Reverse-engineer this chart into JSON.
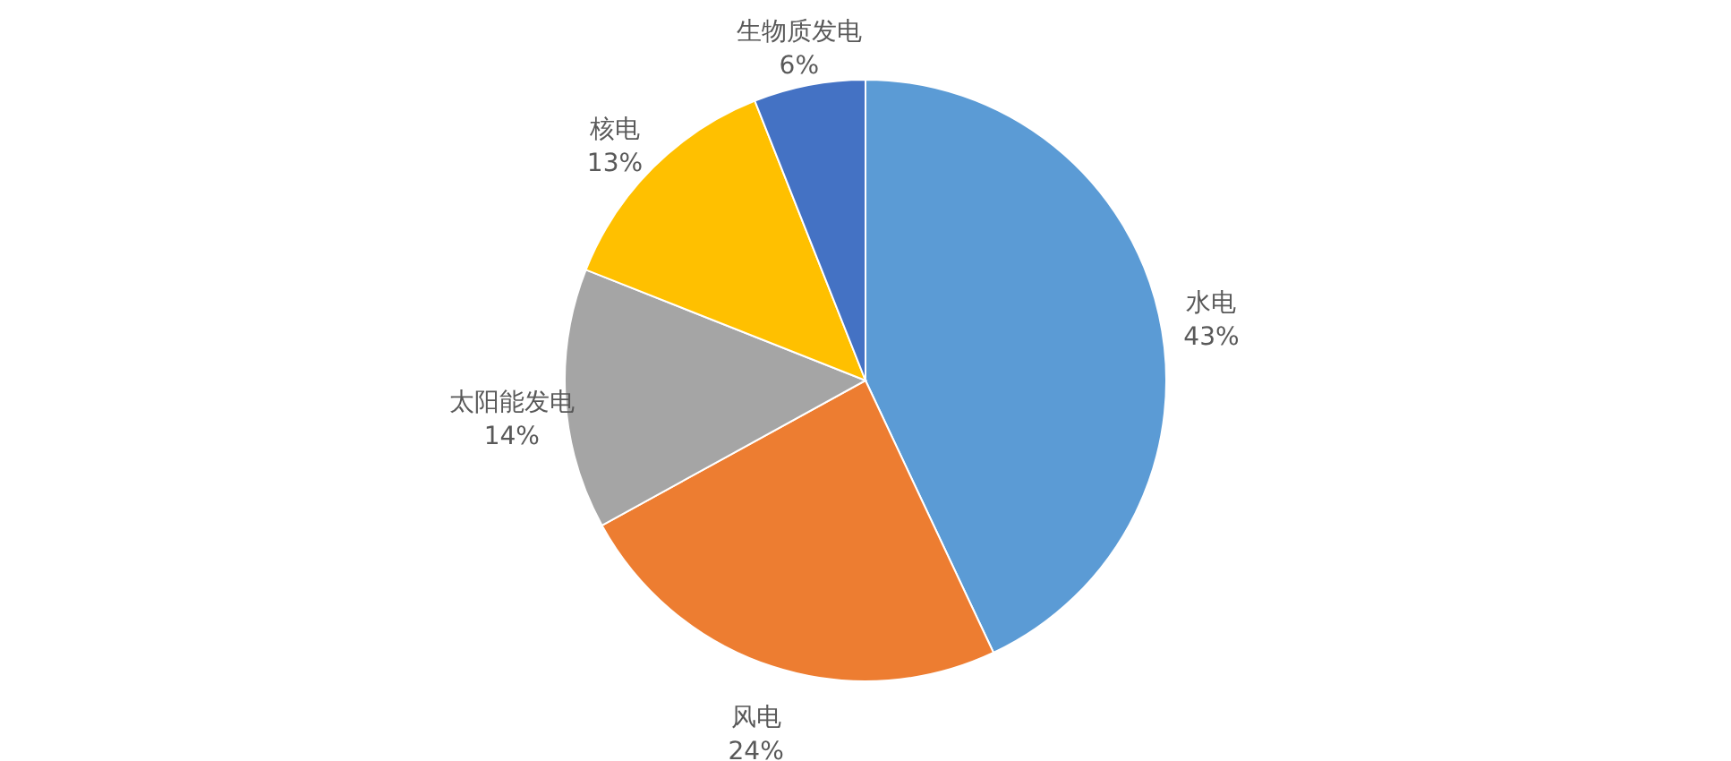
{
  "chart_data": {
    "type": "pie",
    "categories": [
      "水电",
      "风电",
      "太阳能发电",
      "核电",
      "生物质发电"
    ],
    "values": [
      43,
      24,
      14,
      13,
      6
    ],
    "value_labels": [
      "43%",
      "24%",
      "14%",
      "13%",
      "6%"
    ],
    "colors": [
      "#5b9bd5",
      "#ed7d31",
      "#a5a5a5",
      "#ffc000",
      "#4472c4"
    ]
  }
}
